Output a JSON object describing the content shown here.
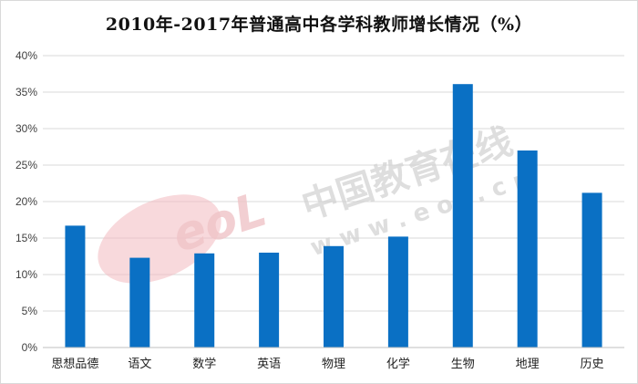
{
  "title": "2010年-2017年普通高中各学科教师增长情况（%）",
  "watermark": {
    "brand_text": "中国教育在线",
    "url_text": "w w w . e o l . c n",
    "logo_text": "eoL"
  },
  "colors": {
    "bar": "#0a70c4",
    "grid": "#d9d9d9",
    "axis": "#bfbfbf",
    "watermark_text": "#d0d0d0",
    "watermark_logo": "#f3b9bf"
  },
  "chart_data": {
    "type": "bar",
    "title": "2010年-2017年普通高中各学科教师增长情况（%）",
    "categories": [
      "思想品德",
      "语文",
      "数学",
      "英语",
      "物理",
      "化学",
      "生物",
      "地理",
      "历史"
    ],
    "values": [
      16.7,
      12.3,
      12.9,
      13.0,
      13.9,
      15.2,
      36.1,
      27.0,
      21.2
    ],
    "ylim": [
      0,
      40
    ],
    "yticks": [
      0,
      5,
      10,
      15,
      20,
      25,
      30,
      35,
      40
    ],
    "ytick_labels": [
      "0%",
      "5%",
      "10%",
      "15%",
      "20%",
      "25%",
      "30%",
      "35%",
      "40%"
    ],
    "grid": true,
    "legend": "none",
    "xlabel": "",
    "ylabel": ""
  }
}
